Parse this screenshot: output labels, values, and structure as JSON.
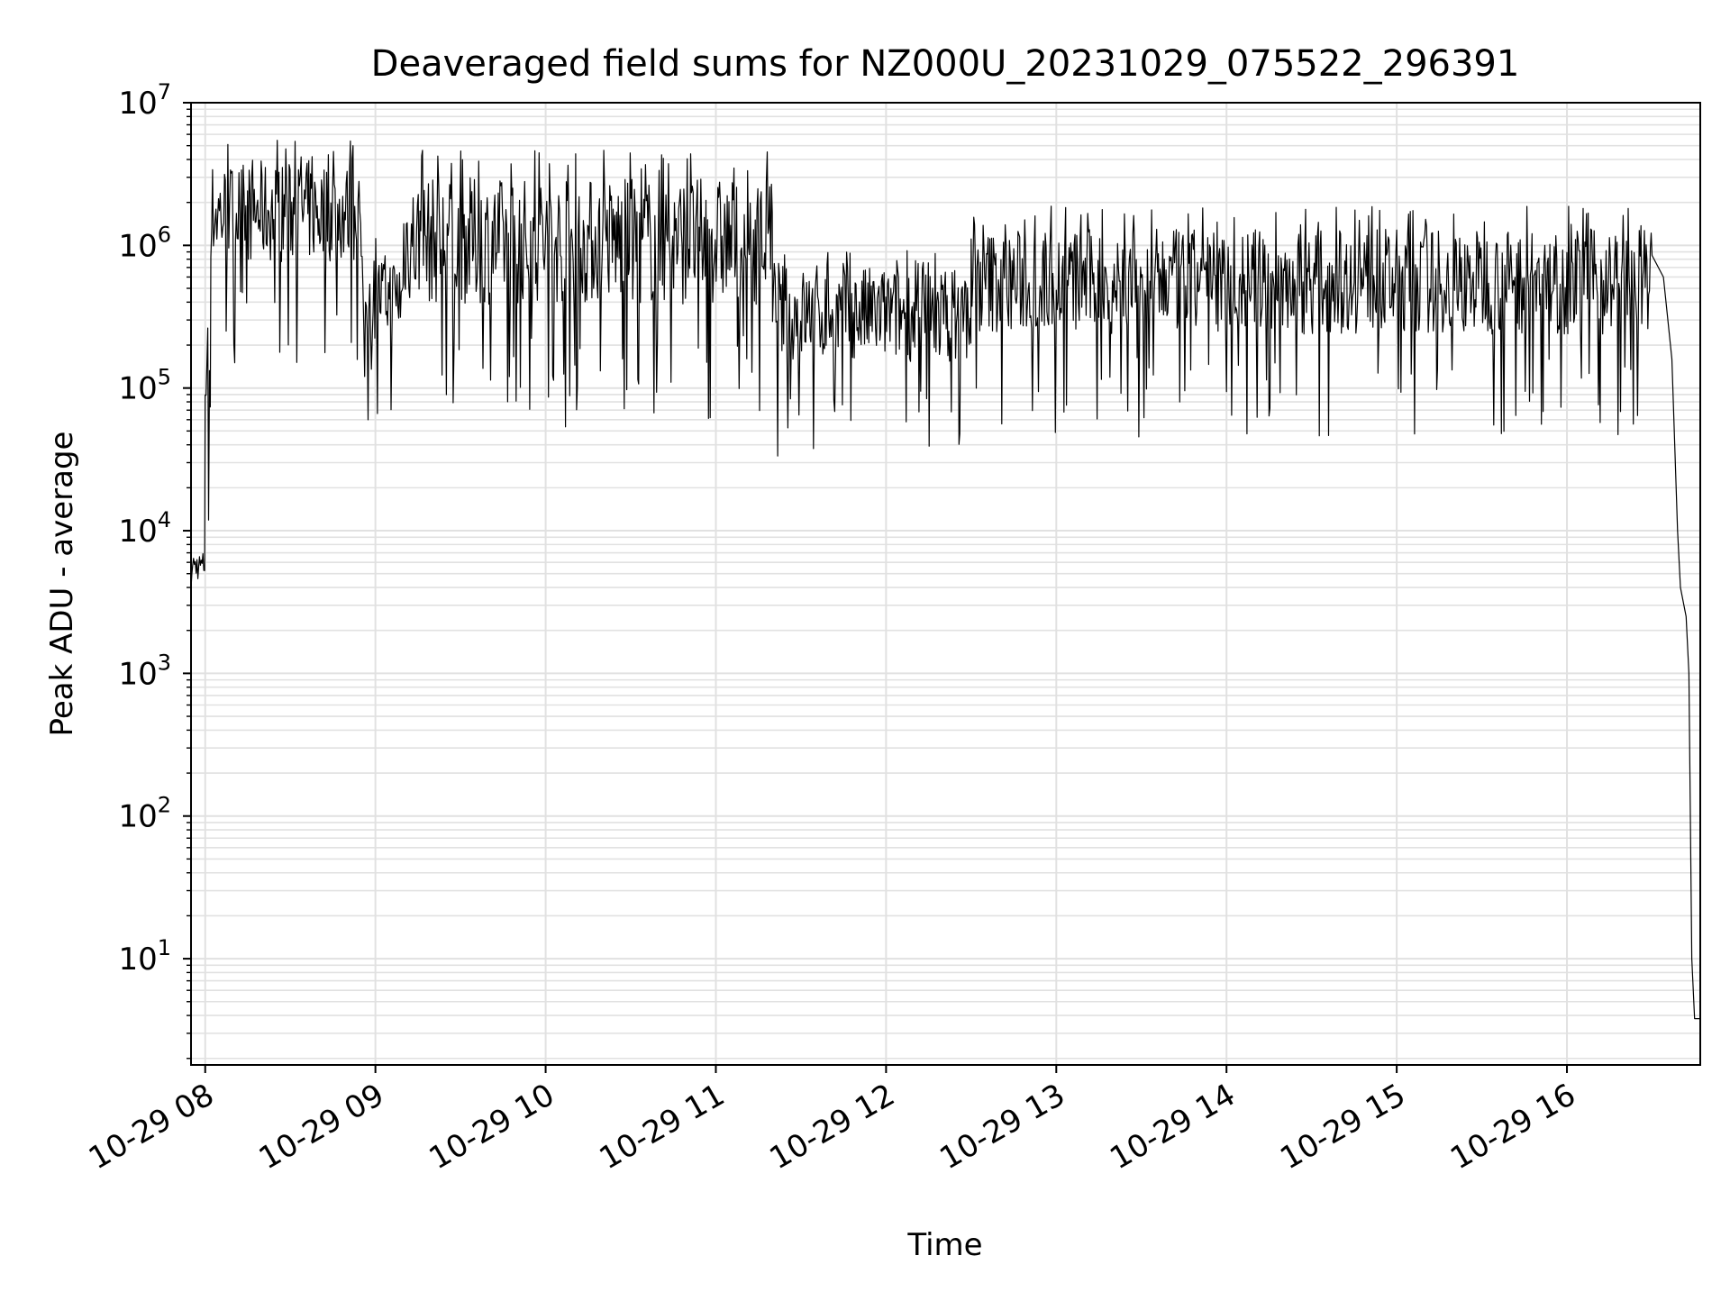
{
  "chart_data": {
    "type": "line",
    "title": "Deaveraged field sums for NZ000U_20231029_075522_296391",
    "xlabel": "Time",
    "ylabel": "Peak ADU - average",
    "yscale": "log",
    "ylim": [
      1.8,
      10000000
    ],
    "xlim": [
      "2023-10-29T07:55",
      "2023-10-29T16:47"
    ],
    "grid": {
      "major": true,
      "minor_y": true
    },
    "legend": "none",
    "line_color": "#000000",
    "x_ticks": [
      "10-29 08",
      "10-29 09",
      "10-29 10",
      "10-29 11",
      "10-29 12",
      "10-29 13",
      "10-29 14",
      "10-29 15",
      "10-29 16"
    ],
    "y_ticks": [
      {
        "base": "10",
        "exp": "1",
        "value": 10
      },
      {
        "base": "10",
        "exp": "2",
        "value": 100
      },
      {
        "base": "10",
        "exp": "3",
        "value": 1000
      },
      {
        "base": "10",
        "exp": "4",
        "value": 10000
      },
      {
        "base": "10",
        "exp": "5",
        "value": 100000
      },
      {
        "base": "10",
        "exp": "6",
        "value": 1000000
      },
      {
        "base": "10",
        "exp": "7",
        "value": 10000000
      }
    ],
    "series": [
      {
        "segments": [
          {
            "start": "2023-10-29T07:55",
            "end": "2023-10-29T08:00",
            "lo": 2800,
            "hi": 8000
          },
          {
            "start": "2023-10-29T08:00",
            "end": "2023-10-29T08:02",
            "lo": 8000,
            "hi": 500000
          },
          {
            "start": "2023-10-29T08:02",
            "end": "2023-10-29T08:55",
            "lo": 150000,
            "hi": 5500000
          },
          {
            "start": "2023-10-29T08:55",
            "end": "2023-10-29T09:10",
            "lo": 55000,
            "hi": 1200000
          },
          {
            "start": "2023-10-29T09:10",
            "end": "2023-10-29T11:20",
            "lo": 50000,
            "hi": 4700000
          },
          {
            "start": "2023-10-29T11:20",
            "end": "2023-10-29T12:30",
            "lo": 33000,
            "hi": 1000000
          },
          {
            "start": "2023-10-29T12:30",
            "end": "2023-10-29T16:30",
            "lo": 44000,
            "hi": 1900000
          }
        ],
        "points": [
          {
            "x": "2023-10-29T16:30",
            "y": 850000
          },
          {
            "x": "2023-10-29T16:34",
            "y": 600000
          },
          {
            "x": "2023-10-29T16:37",
            "y": 160000
          },
          {
            "x": "2023-10-29T16:39",
            "y": 10000
          },
          {
            "x": "2023-10-29T16:40",
            "y": 4000
          },
          {
            "x": "2023-10-29T16:42",
            "y": 2500
          },
          {
            "x": "2023-10-29T16:43",
            "y": 1000
          },
          {
            "x": "2023-10-29T16:44",
            "y": 10
          },
          {
            "x": "2023-10-29T16:45",
            "y": 3.8
          },
          {
            "x": "2023-10-29T16:47",
            "y": 3.8
          }
        ]
      }
    ]
  }
}
